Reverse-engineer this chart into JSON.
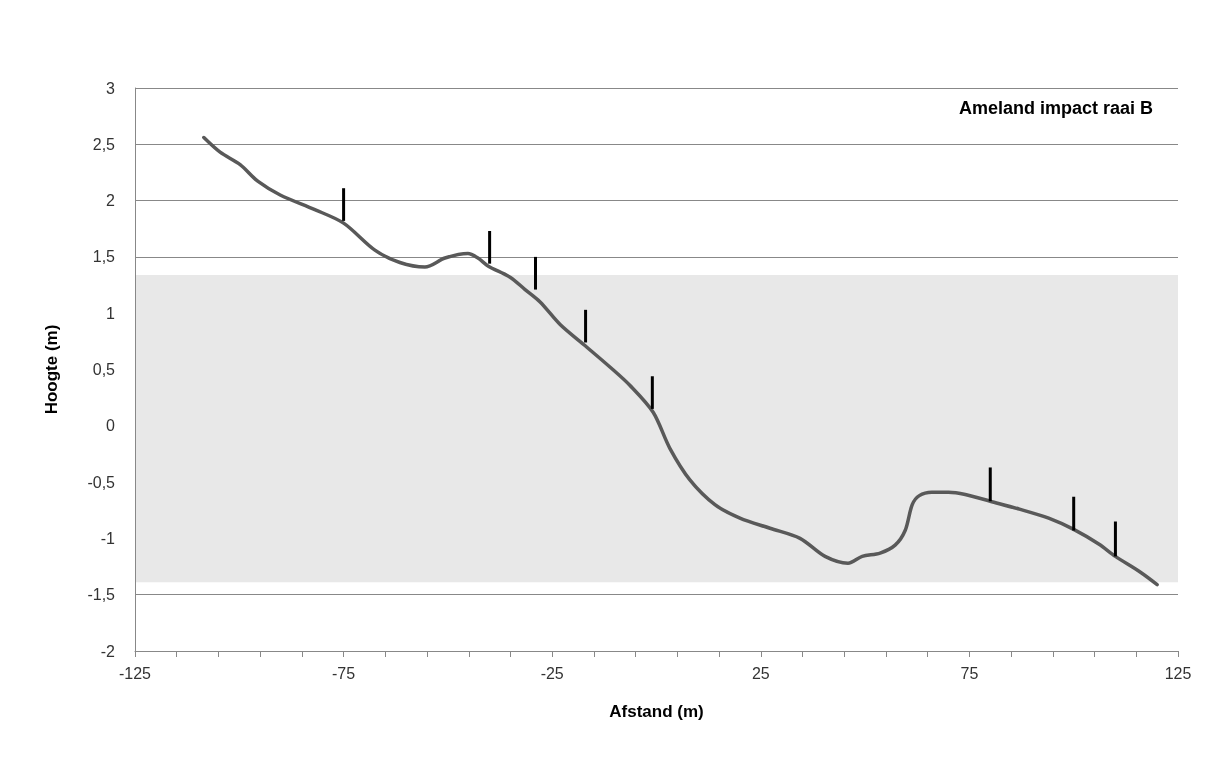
{
  "chart_data": {
    "type": "line",
    "title": "Ameland impact raai B",
    "xlabel": "Afstand (m)",
    "ylabel": "Hoogte (m)",
    "xlim": [
      -125,
      125
    ],
    "xticks": [
      {
        "value": -125,
        "label": "-125"
      },
      {
        "value": -115,
        "label": null
      },
      {
        "value": -105,
        "label": null
      },
      {
        "value": -95,
        "label": null
      },
      {
        "value": -85,
        "label": null
      },
      {
        "value": -75,
        "label": "-75"
      },
      {
        "value": -65,
        "label": null
      },
      {
        "value": -55,
        "label": null
      },
      {
        "value": -45,
        "label": null
      },
      {
        "value": -35,
        "label": null
      },
      {
        "value": -25,
        "label": "-25"
      },
      {
        "value": -15,
        "label": null
      },
      {
        "value": -5,
        "label": null
      },
      {
        "value": 5,
        "label": null
      },
      {
        "value": 15,
        "label": null
      },
      {
        "value": 25,
        "label": "25"
      },
      {
        "value": 35,
        "label": null
      },
      {
        "value": 45,
        "label": null
      },
      {
        "value": 55,
        "label": null
      },
      {
        "value": 65,
        "label": null
      },
      {
        "value": 75,
        "label": "75"
      },
      {
        "value": 85,
        "label": null
      },
      {
        "value": 95,
        "label": null
      },
      {
        "value": 105,
        "label": null
      },
      {
        "value": 115,
        "label": null
      },
      {
        "value": 125,
        "label": "125"
      }
    ],
    "ylim": [
      -2,
      3
    ],
    "yticks": [
      -2,
      {
        "value": -1.5,
        "label": "-1,5"
      },
      -1,
      {
        "value": -0.5,
        "label": "-0,5"
      },
      0,
      {
        "value": 0.5,
        "label": "0,5"
      },
      1,
      {
        "value": 1.5,
        "label": "1,5"
      },
      2,
      {
        "value": 2.5,
        "label": "2,5"
      },
      3
    ],
    "grid": "y",
    "marker": "none",
    "line_style": "solid",
    "bands": [
      {
        "axis": "y",
        "from": -1.39,
        "to": 1.34,
        "color": "#e8e8e8"
      }
    ],
    "series": [
      {
        "color": "#595959",
        "x": [
          -108.5,
          -104.6,
          -99.8,
          -95.5,
          -90.2,
          -81.9,
          -75,
          -67.5,
          -61.5,
          -55.5,
          -50.7,
          -45.2,
          -42.8,
          -40.4,
          -35.1,
          -31.5,
          -27.9,
          -23.1,
          -17.4,
          -11.1,
          -6.4,
          -0.8,
          3.2,
          8,
          14,
          20,
          27.2,
          34.4,
          40.4,
          45.9,
          49.3,
          53.6,
          57.2,
          59.6,
          61.3,
          63,
          66,
          70,
          74,
          80,
          87,
          94,
          100,
          106,
          110,
          116,
          120
        ],
        "values": [
          2.56,
          2.43,
          2.32,
          2.17,
          2.05,
          1.92,
          1.8,
          1.56,
          1.45,
          1.41,
          1.49,
          1.53,
          1.49,
          1.42,
          1.32,
          1.21,
          1.1,
          0.9,
          0.72,
          0.52,
          0.36,
          0.12,
          -0.2,
          -0.48,
          -0.7,
          -0.82,
          -0.91,
          -1,
          -1.16,
          -1.22,
          -1.16,
          -1.13,
          -1.06,
          -0.93,
          -0.7,
          -0.62,
          -0.59,
          -0.59,
          -0.61,
          -0.67,
          -0.74,
          -0.82,
          -0.92,
          -1.05,
          -1.16,
          -1.3,
          -1.41
        ]
      },
      {
        "type": "bar",
        "color": "#000000",
        "x": [
          -75,
          -40,
          -29,
          -17,
          -1,
          80,
          100,
          110
        ],
        "base": [
          1.82,
          1.44,
          1.21,
          0.74,
          0.15,
          -0.67,
          -0.93,
          -1.16
        ],
        "values": [
          0.29,
          0.29,
          0.29,
          0.29,
          0.29,
          0.3,
          0.3,
          0.31
        ]
      }
    ]
  }
}
